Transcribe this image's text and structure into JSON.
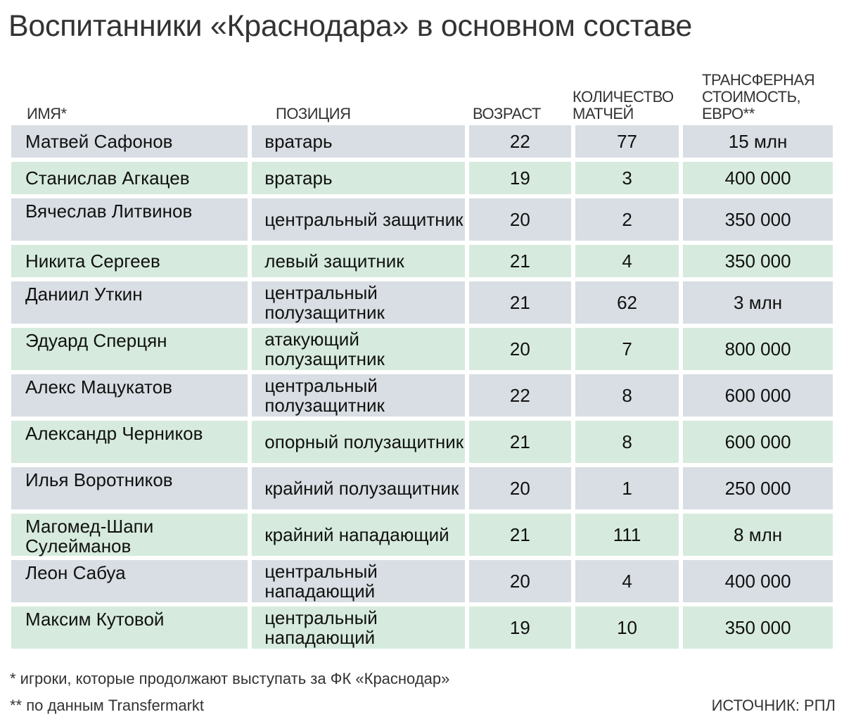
{
  "chart_data": {
    "type": "table",
    "title": "Воспитанники «Краснодара» в основном составе",
    "columns": [
      "ИМЯ*",
      "ПОЗИЦИЯ",
      "ВОЗРАСТ",
      "КОЛИЧЕСТВО МАТЧЕЙ",
      "ТРАНСФЕРНАЯ СТОИМОСТЬ, ЕВРО**"
    ],
    "rows": [
      {
        "name": "Матвей Сафонов",
        "position": "вратарь",
        "age": "22",
        "matches": "77",
        "value": "15 млн"
      },
      {
        "name": "Станислав Агкацев",
        "position": "вратарь",
        "age": "19",
        "matches": "3",
        "value": "400 000"
      },
      {
        "name": "Вячеслав Литвинов",
        "position": "центральный защитник",
        "age": "20",
        "matches": "2",
        "value": "350 000"
      },
      {
        "name": "Никита Сергеев",
        "position": "левый защитник",
        "age": "21",
        "matches": "4",
        "value": "350 000"
      },
      {
        "name": "Даниил Уткин",
        "position": "центральный полузащитник",
        "age": "21",
        "matches": "62",
        "value": "3 млн"
      },
      {
        "name": "Эдуард Сперцян",
        "position": "атакующий полузащитник",
        "age": "20",
        "matches": "7",
        "value": "800 000"
      },
      {
        "name": "Алекс Мацукатов",
        "position": "центральный полузащитник",
        "age": "22",
        "matches": "8",
        "value": "600 000"
      },
      {
        "name": "Александр Черников",
        "position": "опорный полузащитник",
        "age": "21",
        "matches": "8",
        "value": "600 000"
      },
      {
        "name": "Илья Воротников",
        "position": "крайний полузащитник",
        "age": "20",
        "matches": "1",
        "value": "250 000"
      },
      {
        "name": "Магомед-Шапи Сулейманов",
        "position": "крайний нападающий",
        "age": "21",
        "matches": "111",
        "value": "8 млн"
      },
      {
        "name": "Леон Сабуа",
        "position": "центральный нападающий",
        "age": "20",
        "matches": "4",
        "value": "400 000"
      },
      {
        "name": "Максим Кутовой",
        "position": "центральный нападающий",
        "age": "19",
        "matches": "10",
        "value": "350 000"
      }
    ],
    "footnotes": [
      "* игроки, которые продолжают выступать за ФК «Краснодар»",
      "** по данным Transfermarkt"
    ],
    "source": "ИСТОЧНИК: РПЛ"
  },
  "colors": {
    "row_odd": "#d8dee3",
    "row_even": "#d6ebdd"
  }
}
